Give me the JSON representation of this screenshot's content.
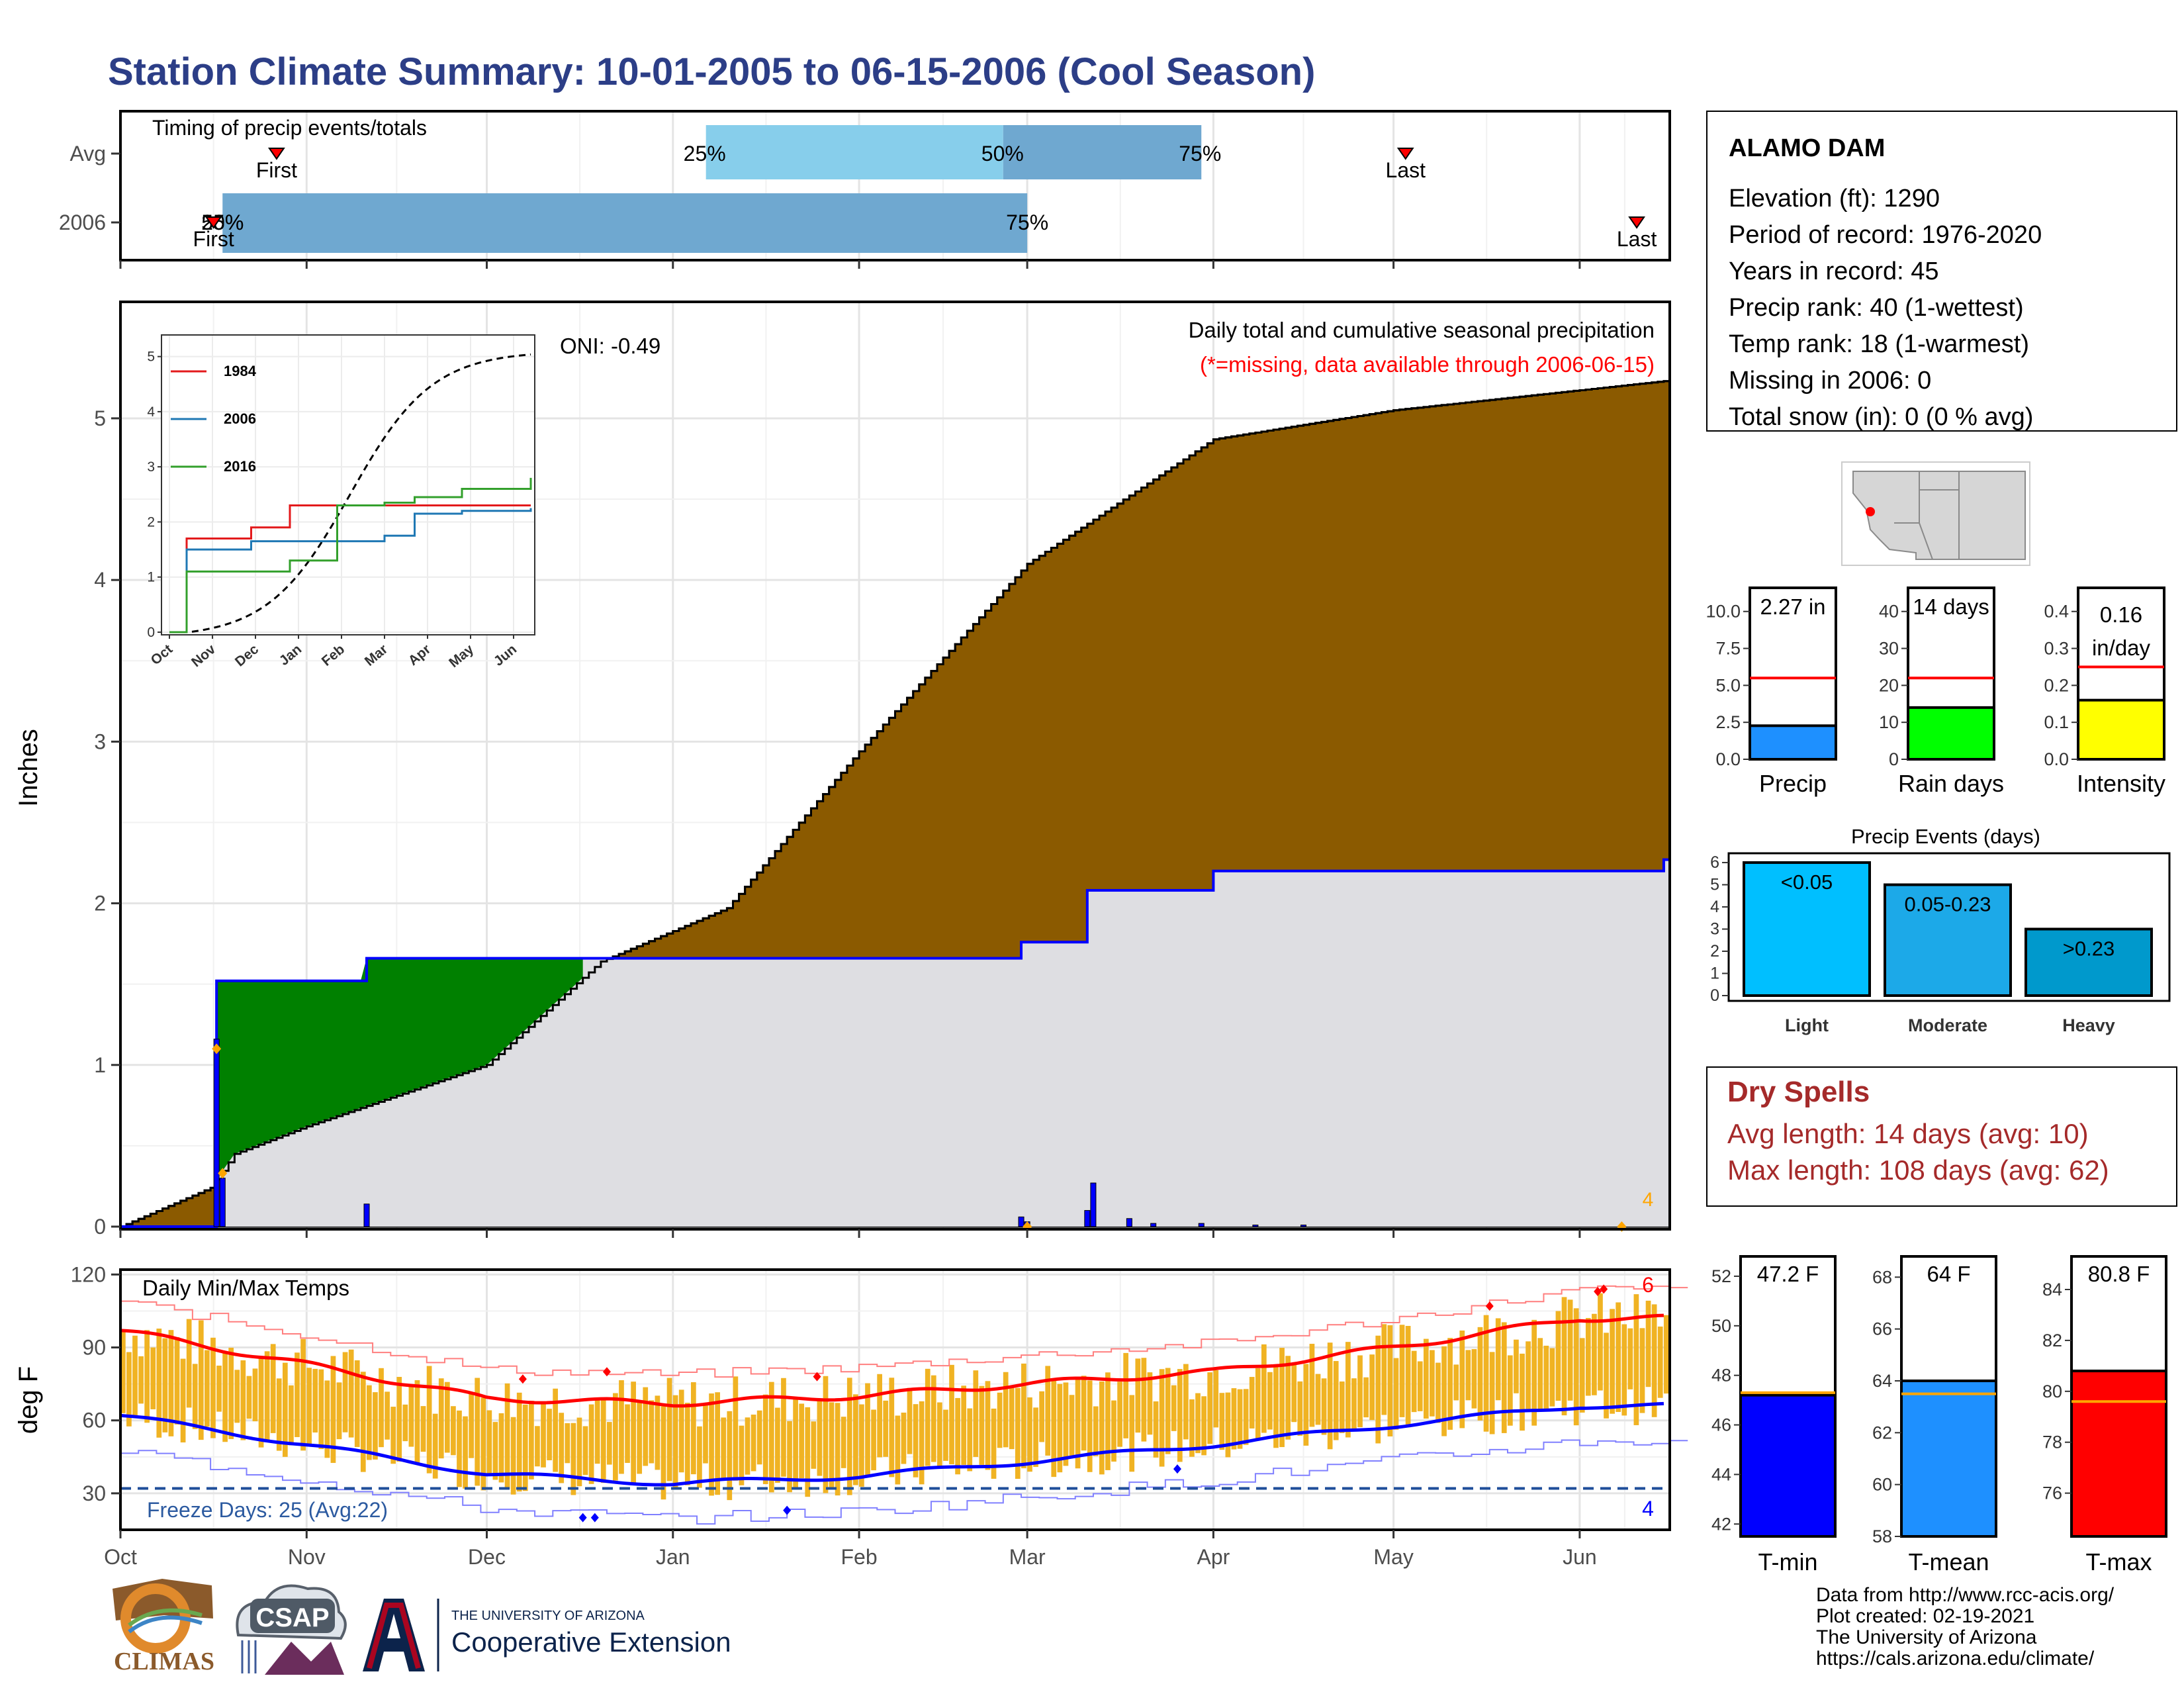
{
  "title": "Station Climate Summary: 10-01-2005 to 06-15-2006 (Cool Season)",
  "timing": {
    "label": "Timing of precip events/totals",
    "rows": [
      "Avg",
      "2006"
    ],
    "avg": {
      "p25": "25%",
      "p50": "50%",
      "p75": "75%",
      "first": "First",
      "last": "Last"
    },
    "y2006": {
      "p25": "25%",
      "p50": "50%",
      "p75": "75%",
      "first": "First",
      "last": "Last"
    }
  },
  "main": {
    "ylabel": "Inches",
    "yticks": [
      "0",
      "1",
      "2",
      "3",
      "4",
      "5"
    ],
    "oni": "ONI: -0.49",
    "annotation1": "Daily total and cumulative seasonal precipitation",
    "annotation2": "(*=missing, data available through 2006-06-15)",
    "missing_count": "4"
  },
  "inset": {
    "yticks": [
      "0",
      "1",
      "2",
      "3",
      "4",
      "5"
    ],
    "xticks": [
      "Oct",
      "Nov",
      "Dec",
      "Jan",
      "Feb",
      "Mar",
      "Apr",
      "May",
      "Jun"
    ],
    "legend": [
      "1984",
      "2006",
      "2016"
    ]
  },
  "temps": {
    "ylabel": "deg F",
    "label": "Daily Min/Max Temps",
    "yticks": [
      "30",
      "60",
      "90",
      "120"
    ],
    "freeze": "Freeze Days: 25 (Avg:22)",
    "high_count": "6",
    "low_count": "4"
  },
  "xticks": [
    "Oct",
    "Nov",
    "Dec",
    "Jan",
    "Feb",
    "Mar",
    "Apr",
    "May",
    "Jun"
  ],
  "station": {
    "name": "ALAMO DAM",
    "elevation": "Elevation (ft): 1290",
    "period": "Period of record: 1976-2020",
    "years": "Years in record: 45",
    "precip_rank": "Precip rank: 40 (1-wettest)",
    "temp_rank": "Temp rank: 18 (1-warmest)",
    "missing": "Missing in 2006: 0",
    "snow": "Total snow (in): 0 (0 % avg)"
  },
  "mini_bars": {
    "precip": {
      "label": "Precip",
      "value_label": "2.27 in",
      "ticks": [
        "0.0",
        "2.5",
        "5.0",
        "7.5",
        "10.0"
      ]
    },
    "raindays": {
      "label": "Rain days",
      "value_label": "14 days",
      "ticks": [
        "0",
        "10",
        "20",
        "30",
        "40"
      ]
    },
    "intensity": {
      "label": "Intensity",
      "value_label": "0.16",
      "value_unit": "in/day",
      "ticks": [
        "0.0",
        "0.1",
        "0.2",
        "0.3",
        "0.4"
      ]
    }
  },
  "events": {
    "title": "Precip Events (days)",
    "ticks": [
      "0",
      "1",
      "2",
      "3",
      "4",
      "5",
      "6"
    ],
    "bars": [
      {
        "label": "<0.05",
        "cat": "Light"
      },
      {
        "label": "0.05-0.23",
        "cat": "Moderate"
      },
      {
        "label": ">0.23",
        "cat": "Heavy"
      }
    ]
  },
  "dry_spells": {
    "title": "Dry Spells",
    "avg": "Avg length: 14 days (avg: 10)",
    "max": "Max length: 108 days (avg: 62)"
  },
  "temp_bars": {
    "tmin": {
      "label": "T-min",
      "value_label": "47.2 F",
      "ticks": [
        "42",
        "44",
        "46",
        "48",
        "50",
        "52"
      ]
    },
    "tmean": {
      "label": "T-mean",
      "value_label": "64 F",
      "ticks": [
        "58",
        "60",
        "62",
        "64",
        "66",
        "68"
      ]
    },
    "tmax": {
      "label": "T-max",
      "value_label": "80.8 F",
      "ticks": [
        "76",
        "78",
        "80",
        "82",
        "84"
      ]
    }
  },
  "footer": {
    "line1": "Data from http://www.rcc-acis.org/",
    "line2": "Plot created: 02-19-2021",
    "line3": "The University of Arizona",
    "line4": "https://cals.arizona.edu/climate/"
  },
  "logos": {
    "climas": "CLIMAS",
    "csap": "CSAP",
    "ua_small": "THE UNIVERSITY OF ARIZONA",
    "ua_big": "Cooperative Extension"
  },
  "colors": {
    "title": "#2c3e87",
    "seasonal_avg": "#8b5a00",
    "year_cum": "#dedee2",
    "above_avg": "#008000",
    "cum_line": "#0000ff",
    "daily_bar": "#0000ff",
    "temp_bar": "#f0b323",
    "tmax_line": "#ff0000",
    "tmin_line": "#0000ff",
    "light": "#00bfff",
    "moderate": "#1ca9e8",
    "heavy": "#0099cc"
  },
  "chart_data": [
    {
      "type": "area",
      "title": "Daily total and cumulative seasonal precipitation",
      "ylabel": "Inches",
      "x": [
        "Oct",
        "Nov",
        "Dec",
        "Jan",
        "Feb",
        "Mar",
        "Apr",
        "May",
        "Jun"
      ],
      "ylim": [
        0,
        5.7
      ],
      "series": [
        {
          "name": "",
          "x": [
            "10-01",
            "10-16",
            "10-20",
            "11-01",
            "12-01",
            "12-20",
            "01-10",
            "02-01",
            "03-01",
            "04-01",
            "05-01",
            "06-15"
          ],
          "values": [
            0,
            0.24,
            0.45,
            0.62,
            1.0,
            1.64,
            1.97,
            2.94,
            4.1,
            4.87,
            5.05,
            5.23
          ]
        },
        {
          "name": "",
          "x": [
            "10-01",
            "10-16",
            "10-17",
            "11-11",
            "02-28",
            "03-11",
            "04-01",
            "06-15"
          ],
          "values": [
            0,
            0,
            1.52,
            1.66,
            1.76,
            2.08,
            2.2,
            2.27
          ]
        }
      ]
    },
    {
      "type": "line",
      "ylim": [
        0,
        5.2
      ],
      "x": [
        "Oct",
        "Nov",
        "Dec",
        "Jan",
        "Feb",
        "Mar",
        "Apr",
        "May",
        "Jun"
      ],
      "series": [
        {
          "name": "1984",
          "values": [
            0,
            1.7,
            1.9,
            2.3,
            2.3,
            2.3,
            2.3,
            2.3,
            2.3
          ]
        },
        {
          "name": "2006",
          "values": [
            0,
            1.5,
            1.65,
            1.65,
            1.65,
            1.75,
            2.15,
            2.2,
            2.25
          ]
        },
        {
          "name": "2016",
          "values": [
            0,
            1.1,
            1.1,
            1.3,
            2.3,
            2.35,
            2.45,
            2.6,
            2.8
          ]
        }
      ]
    },
    {
      "type": "line",
      "title": "Daily Min/Max Temps",
      "ylabel": "deg F",
      "ylim": [
        15,
        122
      ],
      "x": [
        "Oct",
        "Nov",
        "Dec",
        "Jan",
        "Feb",
        "Mar",
        "Apr",
        "May",
        "Jun"
      ],
      "series": [
        {
          "name": "",
          "values": [
            97,
            83,
            69,
            67,
            70,
            75,
            80,
            90,
            102
          ]
        },
        {
          "name": "",
          "values": [
            62,
            50,
            38,
            34,
            37,
            43,
            50,
            58,
            66
          ]
        }
      ]
    },
    {
      "type": "bar",
      "categories": [
        "Precip",
        "Rain days",
        "Intensity"
      ],
      "series": [
        {
          "name": "",
          "values": [
            2.27,
            14,
            0.16
          ]
        },
        {
          "name": "",
          "values": [
            5.5,
            22,
            0.25
          ]
        }
      ]
    },
    {
      "type": "bar",
      "title": "Precip Events (days)",
      "categories": [
        "Light",
        "Moderate",
        "Heavy"
      ],
      "values": [
        6,
        5,
        3
      ],
      "ylim": [
        0,
        6.3
      ]
    },
    {
      "type": "bar",
      "categories": [
        "T-min",
        "T-mean",
        "T-max"
      ],
      "series": [
        {
          "name": "",
          "values": [
            47.2,
            64,
            80.8
          ]
        },
        {
          "name": "",
          "values": [
            47.3,
            63.5,
            79.6
          ]
        }
      ]
    }
  ]
}
